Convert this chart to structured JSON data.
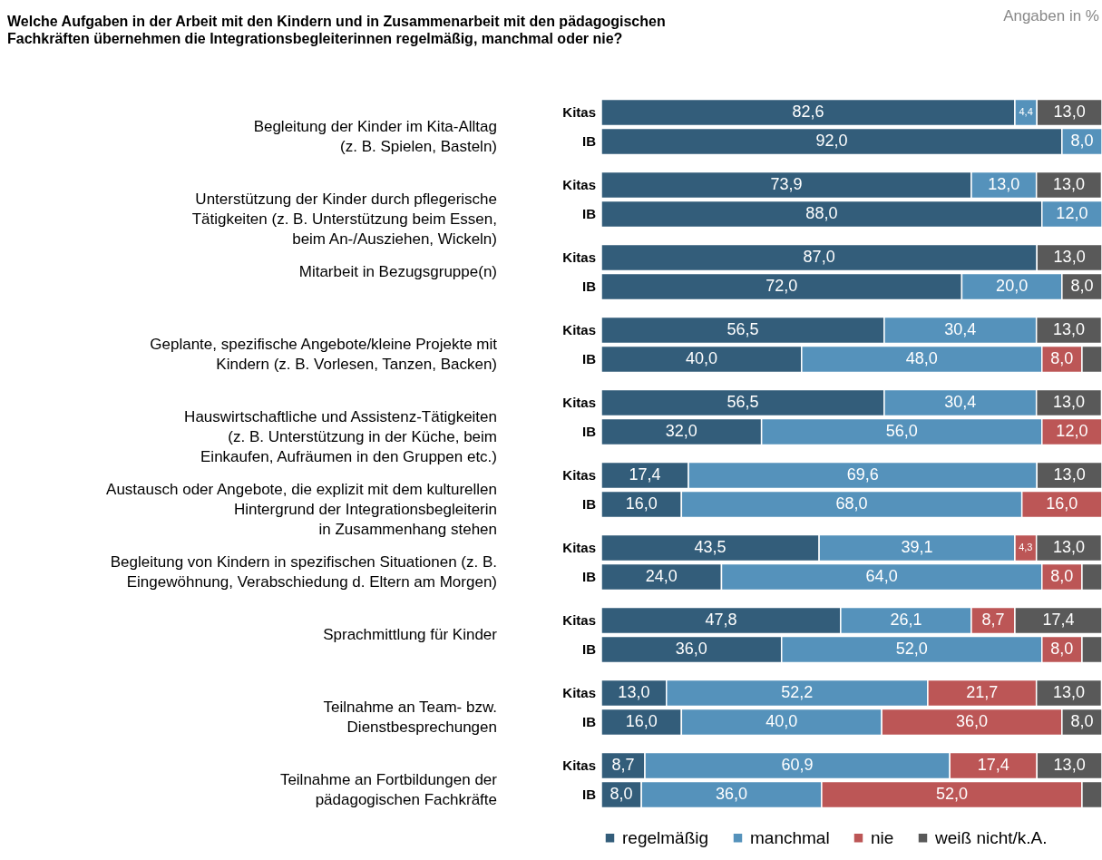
{
  "chart_data": {
    "type": "bar",
    "orientation": "horizontal",
    "stacked": true,
    "title": "Welche Aufgaben in der Arbeit mit den Kindern und in Zusammenarbeit mit den pädagogischen\nFachkräften übernehmen die Integrationsbegleiterinnen regelmäßig, manchmal oder nie?",
    "subtitle": "Angaben in %",
    "categories": [
      "Kitas",
      "IB",
      "Kitas",
      "IB",
      "Kitas",
      "IB",
      "Kitas",
      "IB",
      "Kitas",
      "IB",
      "Kitas",
      "IB",
      "Kitas",
      "IB",
      "Kitas",
      "IB",
      "Kitas",
      "IB",
      "Kitas",
      "IB"
    ],
    "annotations": [
      "Begleitung der Kinder im Kita-Alltag\n(z. B. Spielen, Basteln)",
      "Unterstützung der Kinder durch pflegerische\nTätigkeiten (z. B. Unterstützung beim Essen,\nbeim An-/Ausziehen, Wickeln)",
      "Mitarbeit in Bezugsgruppe(n)",
      "Geplante, spezifische Angebote/kleine Projekte mit\nKindern (z. B. Vorlesen, Tanzen, Backen)",
      "Hauswirtschaftliche und Assistenz-Tätigkeiten\n(z. B. Unterstützung in der Küche, beim\nEinkaufen, Aufräumen in den Gruppen etc.)",
      "Austausch oder Angebote, die explizit mit dem kulturellen\nHintergrund der Integrationsbegleiterin\nin Zusammenhang stehen",
      "Begleitung von Kindern in spezifischen Situationen (z. B.\nEingewöhnung, Verabschiedung d. Eltern am Morgen)",
      "Sprachmittlung für Kinder",
      "Teilnahme an Team- bzw.\nDienstbesprechungen",
      "Teilnahme an Fortbildungen der\npädagogischen Fachkräfte"
    ],
    "legend": "bottom",
    "series": [
      {
        "name": "regelmäßig",
        "color": "#335d7a",
        "values": [
          82.6,
          92.0,
          73.9,
          88.0,
          87.0,
          72.0,
          56.5,
          40.0,
          56.5,
          32.0,
          17.4,
          16.0,
          43.5,
          24.0,
          47.8,
          36.0,
          13.0,
          16.0,
          8.7,
          8.0
        ],
        "value_labels": [
          "82,6",
          "92,0",
          "73,9",
          "88,0",
          "87,0",
          "72,0",
          "56,5",
          "40,0",
          "56,5",
          "32,0",
          "17,4",
          "16,0",
          "43,5",
          "24,0",
          "47,8",
          "36,0",
          "13,0",
          "16,0",
          "8,7",
          "8,0"
        ]
      },
      {
        "name": "manchmal",
        "color": "#5592bb",
        "values": [
          4.4,
          8.0,
          13.0,
          12.0,
          null,
          20.0,
          30.4,
          48.0,
          30.4,
          56.0,
          69.6,
          68.0,
          39.1,
          64.0,
          26.1,
          52.0,
          52.2,
          40.0,
          60.9,
          36.0
        ],
        "value_labels": [
          "4,4",
          "8,0",
          "13,0",
          "12,0",
          null,
          "20,0",
          "30,4",
          "48,0",
          "30,4",
          "56,0",
          "69,6",
          "68,0",
          "39,1",
          "64,0",
          "26,1",
          "52,0",
          "52,2",
          "40,0",
          "60,9",
          "36,0"
        ]
      },
      {
        "name": "nie",
        "color": "#bc5656",
        "values": [
          null,
          null,
          null,
          null,
          null,
          null,
          null,
          8.0,
          null,
          12.0,
          null,
          16.0,
          4.3,
          8.0,
          8.7,
          8.0,
          21.7,
          36.0,
          17.4,
          52.0
        ],
        "value_labels": [
          null,
          null,
          null,
          null,
          null,
          null,
          null,
          "8,0",
          null,
          "12,0",
          null,
          "16,0",
          "4,3",
          "8,0",
          "8,7",
          "8,0",
          "21,7",
          "36,0",
          "17,4",
          "52,0"
        ]
      },
      {
        "name": "weiß nicht/k.A.",
        "color": "#595959",
        "values": [
          13.0,
          null,
          13.0,
          null,
          13.0,
          8.0,
          13.0,
          4.0,
          13.0,
          null,
          13.0,
          null,
          13.0,
          4.0,
          17.4,
          4.0,
          13.0,
          8.0,
          13.0,
          4.0
        ],
        "value_labels": [
          "13,0",
          null,
          "13,0",
          null,
          "13,0",
          "8,0",
          "13,0",
          null,
          "13,0",
          null,
          "13,0",
          null,
          "13,0",
          null,
          "17,4",
          null,
          "13,0",
          "8,0",
          "13,0",
          null
        ]
      }
    ]
  }
}
